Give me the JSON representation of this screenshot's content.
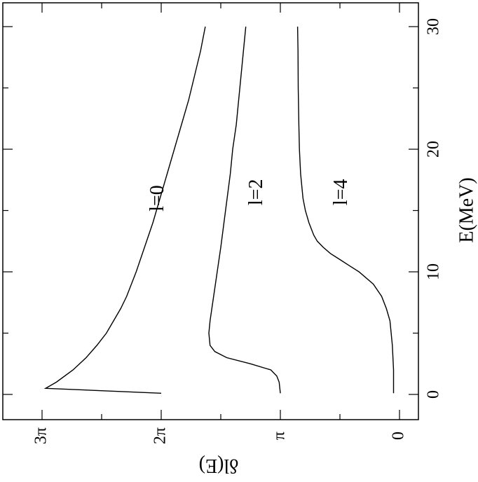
{
  "chart_data": {
    "type": "line",
    "orientation": "rotated-90-clockwise",
    "xlabel": "E(MeV)",
    "ylabel": "δl(E)",
    "xlim": [
      0,
      31
    ],
    "ylim": [
      -0.15,
      3.3
    ],
    "x_ticks": [
      "0",
      "10",
      "20",
      "30"
    ],
    "y_ticks": [
      "0",
      "π",
      "2π",
      "3π"
    ],
    "y_tick_values": [
      0,
      1,
      2,
      3
    ],
    "y_unit": "π",
    "series": [
      {
        "name": "l=0",
        "x": [
          0.1,
          0.5,
          1,
          2,
          3,
          4,
          5,
          6,
          7,
          8,
          9,
          10,
          12,
          14,
          16,
          18,
          20,
          22,
          24,
          26,
          28,
          30
        ],
        "values": [
          2.0,
          2.97,
          2.88,
          2.74,
          2.63,
          2.54,
          2.46,
          2.4,
          2.34,
          2.29,
          2.25,
          2.21,
          2.14,
          2.07,
          2.01,
          1.95,
          1.89,
          1.83,
          1.77,
          1.72,
          1.67,
          1.63
        ]
      },
      {
        "name": "l=2",
        "x": [
          0.1,
          1,
          1.5,
          2,
          2.5,
          3,
          3.5,
          4,
          5,
          6,
          8,
          10,
          12,
          15,
          18,
          20,
          22,
          25,
          28,
          30
        ],
        "values": [
          1.0,
          1.01,
          1.03,
          1.08,
          1.25,
          1.45,
          1.55,
          1.59,
          1.6,
          1.59,
          1.56,
          1.53,
          1.5,
          1.46,
          1.42,
          1.4,
          1.37,
          1.34,
          1.31,
          1.29
        ]
      },
      {
        "name": "l=4",
        "x": [
          0.1,
          2,
          4,
          6,
          7,
          8,
          9,
          10,
          10.5,
          11,
          11.5,
          12,
          12.5,
          13,
          14,
          15,
          16,
          17,
          18,
          20,
          22,
          25,
          28,
          30
        ],
        "values": [
          0.05,
          0.05,
          0.06,
          0.08,
          0.11,
          0.15,
          0.22,
          0.34,
          0.42,
          0.5,
          0.58,
          0.64,
          0.69,
          0.72,
          0.76,
          0.79,
          0.81,
          0.82,
          0.83,
          0.84,
          0.845,
          0.85,
          0.852,
          0.855
        ]
      }
    ]
  }
}
